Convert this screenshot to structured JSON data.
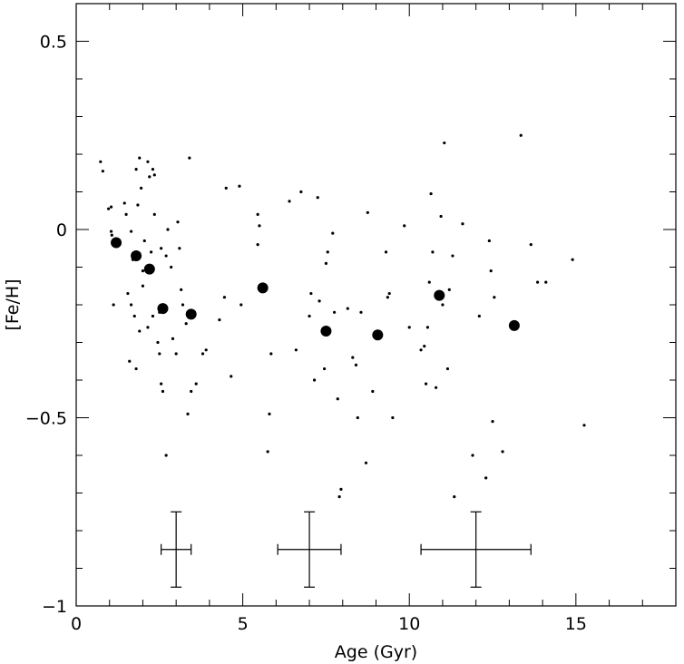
{
  "chart_data": {
    "type": "scatter",
    "xlabel": "Age (Gyr)",
    "ylabel": "[Fe/H]",
    "xlim": [
      0,
      18
    ],
    "ylim": [
      -1,
      0.6
    ],
    "x_ticks": [
      {
        "value": 0,
        "label": "0"
      },
      {
        "value": 5,
        "label": "5"
      },
      {
        "value": 10,
        "label": "10"
      },
      {
        "value": 15,
        "label": "15"
      }
    ],
    "y_ticks": [
      {
        "value": 0.5,
        "label": "0.5"
      },
      {
        "value": 0,
        "label": "0"
      },
      {
        "value": -0.5,
        "label": "−0.5"
      },
      {
        "value": -1,
        "label": "−1"
      }
    ],
    "series": [
      {
        "marker": "small-dot",
        "points": [
          [
            0.73,
            0.18
          ],
          [
            0.8,
            0.155
          ],
          [
            0.97,
            0.055
          ],
          [
            1.05,
            0.06
          ],
          [
            1.05,
            -0.005
          ],
          [
            1.07,
            -0.015
          ],
          [
            1.12,
            -0.2
          ],
          [
            1.45,
            0.07
          ],
          [
            1.5,
            0.04
          ],
          [
            1.65,
            -0.005
          ],
          [
            1.8,
            0.16
          ],
          [
            1.85,
            0.065
          ],
          [
            1.9,
            0.19
          ],
          [
            1.95,
            0.11
          ],
          [
            2.15,
            0.18
          ],
          [
            2.2,
            0.14
          ],
          [
            2.3,
            0.16
          ],
          [
            2.35,
            0.145
          ],
          [
            2.35,
            0.04
          ],
          [
            2.05,
            -0.03
          ],
          [
            1.55,
            -0.17
          ],
          [
            1.65,
            -0.2
          ],
          [
            1.75,
            -0.23
          ],
          [
            1.9,
            -0.27
          ],
          [
            1.6,
            -0.35
          ],
          [
            1.8,
            -0.37
          ],
          [
            2.0,
            -0.15
          ],
          [
            2.15,
            -0.26
          ],
          [
            2.3,
            -0.23
          ],
          [
            2.45,
            -0.3
          ],
          [
            2.5,
            -0.33
          ],
          [
            2.55,
            -0.41
          ],
          [
            2.6,
            -0.43
          ],
          [
            2.7,
            -0.6
          ],
          [
            2.55,
            -0.05
          ],
          [
            2.7,
            -0.07
          ],
          [
            2.75,
            0.0
          ],
          [
            2.85,
            -0.1
          ],
          [
            2.9,
            -0.29
          ],
          [
            3.0,
            -0.33
          ],
          [
            3.1,
            -0.05
          ],
          [
            3.15,
            -0.16
          ],
          [
            3.2,
            -0.2
          ],
          [
            3.3,
            -0.25
          ],
          [
            3.35,
            -0.49
          ],
          [
            3.05,
            0.02
          ],
          [
            3.4,
            0.19
          ],
          [
            3.45,
            -0.43
          ],
          [
            3.6,
            -0.41
          ],
          [
            3.8,
            -0.33
          ],
          [
            3.9,
            -0.32
          ],
          [
            4.3,
            -0.24
          ],
          [
            4.45,
            -0.18
          ],
          [
            4.5,
            0.11
          ],
          [
            4.65,
            -0.39
          ],
          [
            4.9,
            0.115
          ],
          [
            4.95,
            -0.2
          ],
          [
            5.45,
            0.04
          ],
          [
            5.5,
            0.01
          ],
          [
            5.45,
            -0.04
          ],
          [
            5.75,
            -0.59
          ],
          [
            5.8,
            -0.49
          ],
          [
            5.85,
            -0.33
          ],
          [
            6.4,
            0.075
          ],
          [
            6.6,
            -0.32
          ],
          [
            6.75,
            0.1
          ],
          [
            7.0,
            -0.23
          ],
          [
            7.05,
            -0.17
          ],
          [
            7.15,
            -0.4
          ],
          [
            7.25,
            0.085
          ],
          [
            7.3,
            -0.19
          ],
          [
            7.45,
            -0.37
          ],
          [
            7.5,
            -0.09
          ],
          [
            7.55,
            -0.06
          ],
          [
            7.7,
            -0.01
          ],
          [
            7.75,
            -0.22
          ],
          [
            7.85,
            -0.45
          ],
          [
            7.9,
            -0.71
          ],
          [
            7.95,
            -0.69
          ],
          [
            8.15,
            -0.21
          ],
          [
            8.3,
            -0.34
          ],
          [
            8.4,
            -0.36
          ],
          [
            8.45,
            -0.5
          ],
          [
            8.55,
            -0.22
          ],
          [
            8.7,
            -0.62
          ],
          [
            8.75,
            0.045
          ],
          [
            8.9,
            -0.43
          ],
          [
            9.3,
            -0.06
          ],
          [
            9.35,
            -0.18
          ],
          [
            9.4,
            -0.17
          ],
          [
            9.5,
            -0.5
          ],
          [
            9.85,
            0.01
          ],
          [
            10.0,
            -0.26
          ],
          [
            10.35,
            -0.32
          ],
          [
            10.45,
            -0.31
          ],
          [
            10.5,
            -0.41
          ],
          [
            10.55,
            -0.26
          ],
          [
            10.6,
            -0.14
          ],
          [
            10.65,
            0.095
          ],
          [
            10.7,
            -0.06
          ],
          [
            10.8,
            -0.42
          ],
          [
            10.95,
            0.035
          ],
          [
            11.0,
            -0.2
          ],
          [
            11.05,
            0.23
          ],
          [
            11.15,
            -0.37
          ],
          [
            11.2,
            -0.16
          ],
          [
            11.3,
            -0.07
          ],
          [
            11.35,
            -0.71
          ],
          [
            11.6,
            0.015
          ],
          [
            11.9,
            -0.6
          ],
          [
            12.1,
            -0.23
          ],
          [
            12.3,
            -0.66
          ],
          [
            12.4,
            -0.03
          ],
          [
            12.45,
            -0.11
          ],
          [
            12.5,
            -0.51
          ],
          [
            12.55,
            -0.18
          ],
          [
            12.8,
            -0.59
          ],
          [
            13.35,
            0.25
          ],
          [
            13.65,
            -0.04
          ],
          [
            13.85,
            -0.14
          ],
          [
            14.1,
            -0.14
          ],
          [
            14.9,
            -0.08
          ],
          [
            15.25,
            -0.52
          ],
          [
            2.25,
            -0.06
          ],
          [
            2.0,
            -0.11
          ],
          [
            1.7,
            -0.08
          ],
          [
            2.5,
            -0.22
          ]
        ]
      },
      {
        "marker": "large-dot",
        "points": [
          [
            1.2,
            -0.035
          ],
          [
            1.8,
            -0.07
          ],
          [
            2.2,
            -0.105
          ],
          [
            2.6,
            -0.21
          ],
          [
            3.45,
            -0.225
          ],
          [
            5.6,
            -0.155
          ],
          [
            7.5,
            -0.27
          ],
          [
            9.05,
            -0.28
          ],
          [
            10.9,
            -0.175
          ],
          [
            13.15,
            -0.255
          ]
        ]
      }
    ],
    "error_bars": [
      {
        "x": 3.0,
        "y": -0.85,
        "x_err": 0.45,
        "y_err": 0.1
      },
      {
        "x": 7.0,
        "y": -0.85,
        "x_err": 0.95,
        "y_err": 0.1
      },
      {
        "x": 12.0,
        "y": -0.85,
        "x_err": 1.65,
        "y_err": 0.1
      }
    ]
  }
}
